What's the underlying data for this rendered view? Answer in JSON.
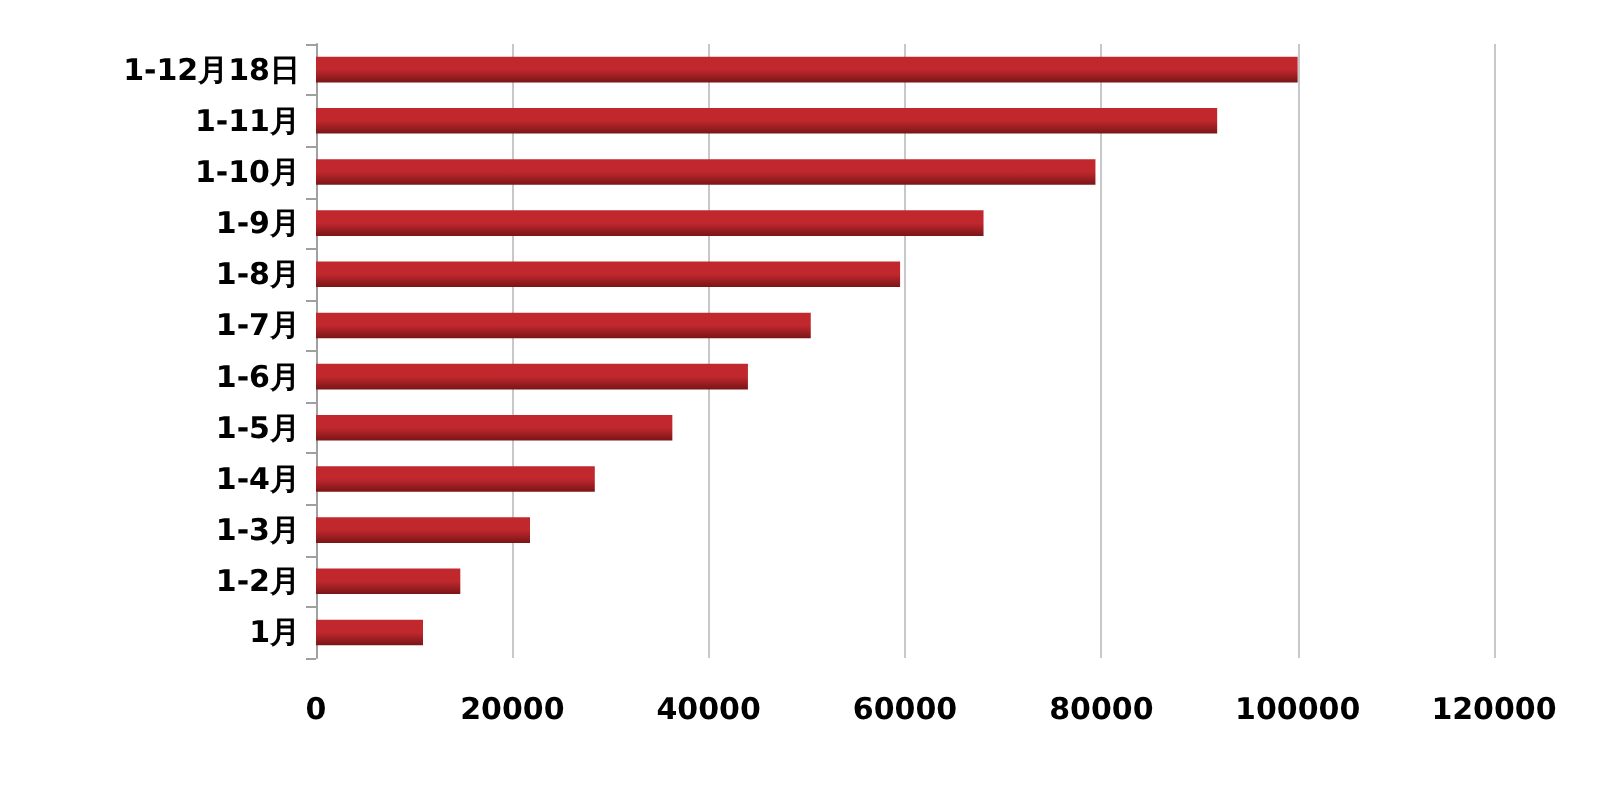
{
  "chart_data": {
    "type": "bar",
    "orientation": "horizontal",
    "categories": [
      "1-12月18日",
      "1-11月",
      "1-10月",
      "1-9月",
      "1-8月",
      "1-7月",
      "1-6月",
      "1-5月",
      "1-4月",
      "1-3月",
      "1-2月",
      "1月"
    ],
    "values": [
      100000,
      91800,
      79400,
      68000,
      59500,
      50400,
      44000,
      36300,
      28400,
      21800,
      14700,
      10900
    ],
    "color": "#c0282d",
    "xlim": [
      0,
      120000
    ],
    "xticks": [
      0,
      20000,
      40000,
      60000,
      80000,
      100000,
      120000
    ],
    "grid": "x"
  }
}
